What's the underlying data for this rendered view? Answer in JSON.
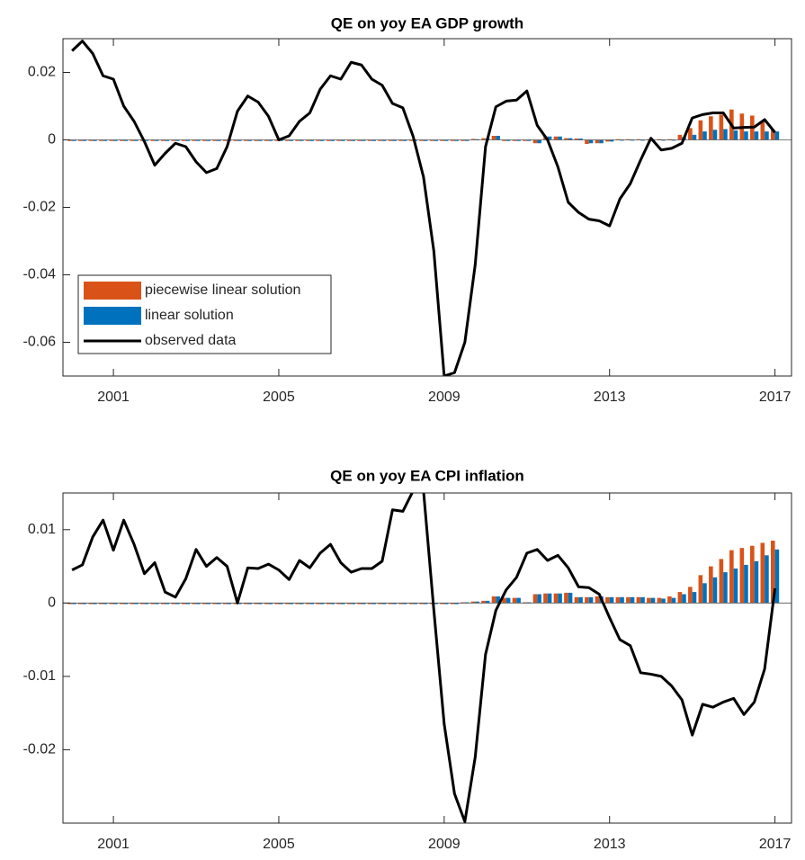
{
  "chart_data": [
    {
      "type": "combo",
      "title": "QE on yoy EA GDP growth",
      "x": [
        2000,
        2000.25,
        2000.5,
        2000.75,
        2001,
        2001.25,
        2001.5,
        2001.75,
        2002,
        2002.25,
        2002.5,
        2002.75,
        2003,
        2003.25,
        2003.5,
        2003.75,
        2004,
        2004.25,
        2004.5,
        2004.75,
        2005,
        2005.25,
        2005.5,
        2005.75,
        2006,
        2006.25,
        2006.5,
        2006.75,
        2007,
        2007.25,
        2007.5,
        2007.75,
        2008,
        2008.25,
        2008.5,
        2008.75,
        2009,
        2009.25,
        2009.5,
        2009.75,
        2010,
        2010.25,
        2010.5,
        2010.75,
        2011,
        2011.25,
        2011.5,
        2011.75,
        2012,
        2012.25,
        2012.5,
        2012.75,
        2013,
        2013.25,
        2013.5,
        2013.75,
        2014,
        2014.25,
        2014.5,
        2014.75,
        2015,
        2015.25,
        2015.5,
        2015.75,
        2016,
        2016.25,
        2016.5,
        2016.75,
        2017
      ],
      "series": [
        {
          "name": "piecewise linear solution",
          "type": "bar",
          "color": "#D95319",
          "values": [
            0,
            0,
            0,
            0,
            0,
            0,
            0,
            0,
            0,
            0,
            0,
            0,
            0,
            0,
            0,
            0,
            0,
            0,
            0,
            0,
            0,
            0,
            0,
            0,
            0,
            0,
            0,
            0,
            0,
            0,
            0,
            0,
            0,
            0,
            0,
            0,
            0,
            0,
            0,
            0.0003,
            0.0005,
            0.0012,
            0,
            0,
            0,
            -0.001,
            0.001,
            0.001,
            0.0005,
            0.0004,
            -0.0012,
            -0.001,
            -0.0005,
            0.0002,
            0.0002,
            0.0002,
            0.0002,
            0.0002,
            0.0002,
            0.0015,
            0.0035,
            0.0058,
            0.007,
            0.0075,
            0.009,
            0.0078,
            0.0072,
            0.0055,
            0.003
          ]
        },
        {
          "name": "linear solution",
          "type": "bar",
          "color": "#0072BD",
          "values": [
            0,
            0,
            0,
            0,
            0,
            0,
            0,
            0,
            0,
            0,
            0,
            0,
            0,
            0,
            0,
            0,
            0,
            0,
            0,
            0,
            0,
            0,
            0,
            0,
            0,
            0,
            0,
            0,
            0,
            0,
            0,
            0,
            0,
            0,
            0,
            0,
            0,
            0,
            0,
            0.0002,
            0.0004,
            0.0012,
            0,
            0,
            0,
            -0.001,
            0.001,
            0.001,
            0.0005,
            0.0004,
            -0.001,
            -0.001,
            -0.0005,
            0.0001,
            0.0001,
            0.0001,
            0.0001,
            0.0001,
            0.0001,
            0.0008,
            0.0015,
            0.0025,
            0.003,
            0.0032,
            0.0028,
            0.0025,
            0.0025,
            0.0025,
            0.0025
          ]
        },
        {
          "name": "observed data",
          "type": "line",
          "color": "#000000",
          "values": [
            0.0264,
            0.0293,
            0.0256,
            0.019,
            0.018,
            0.01,
            0.0055,
            -0.0005,
            -0.0075,
            -0.004,
            -0.001,
            -0.002,
            -0.0065,
            -0.0097,
            -0.0085,
            -0.002,
            0.0085,
            0.013,
            0.0112,
            0.007,
            0,
            0.0012,
            0.0055,
            0.008,
            0.015,
            0.019,
            0.018,
            0.023,
            0.0222,
            0.018,
            0.0162,
            0.0108,
            0.0095,
            0.001,
            -0.011,
            -0.033,
            -0.07,
            -0.069,
            -0.06,
            -0.037,
            -0.002,
            0.0098,
            0.0115,
            0.0118,
            0.0145,
            0.0043,
            0,
            -0.008,
            -0.0185,
            -0.0215,
            -0.0235,
            -0.024,
            -0.0255,
            -0.0175,
            -0.013,
            -0.006,
            0.0005,
            -0.003,
            -0.0025,
            -0.001,
            0.0065,
            0.0075,
            0.008,
            0.008,
            0.0035,
            0.0037,
            0.0038,
            0.006,
            0.0022
          ]
        }
      ],
      "xlim": [
        1999.78,
        2017.4
      ],
      "xticks": [
        2001,
        2005,
        2009,
        2013,
        2017
      ],
      "ylim": [
        -0.07,
        0.03
      ],
      "yticks": [
        -0.06,
        -0.04,
        -0.02,
        0,
        0.02
      ],
      "legend": "lower left"
    },
    {
      "type": "combo",
      "title": "QE on yoy EA CPI inflation",
      "x": [
        2000,
        2000.25,
        2000.5,
        2000.75,
        2001,
        2001.25,
        2001.5,
        2001.75,
        2002,
        2002.25,
        2002.5,
        2002.75,
        2003,
        2003.25,
        2003.5,
        2003.75,
        2004,
        2004.25,
        2004.5,
        2004.75,
        2005,
        2005.25,
        2005.5,
        2005.75,
        2006,
        2006.25,
        2006.5,
        2006.75,
        2007,
        2007.25,
        2007.5,
        2007.75,
        2008,
        2008.25,
        2008.5,
        2008.75,
        2009,
        2009.25,
        2009.5,
        2009.75,
        2010,
        2010.25,
        2010.5,
        2010.75,
        2011,
        2011.25,
        2011.5,
        2011.75,
        2012,
        2012.25,
        2012.5,
        2012.75,
        2013,
        2013.25,
        2013.5,
        2013.75,
        2014,
        2014.25,
        2014.5,
        2014.75,
        2015,
        2015.25,
        2015.5,
        2015.75,
        2016,
        2016.25,
        2016.5,
        2016.75,
        2017
      ],
      "series": [
        {
          "type": "bar",
          "color": "#D95319",
          "values": [
            0,
            0,
            0,
            0,
            0,
            0,
            0,
            0,
            0,
            0,
            0,
            0,
            0,
            0,
            0,
            0,
            0,
            0,
            0,
            0,
            0,
            0,
            0,
            0,
            0,
            0,
            0,
            0,
            0,
            0,
            0,
            0,
            0,
            0,
            0,
            0,
            0,
            0,
            0.0001,
            0.0002,
            0.0003,
            0.0009,
            0.0007,
            0.0007,
            0.0001,
            0.0012,
            0.0013,
            0.0013,
            0.0014,
            0.0008,
            0.0008,
            0.0009,
            0.0008,
            0.0008,
            0.0008,
            0.0008,
            0.0007,
            0.0007,
            0.0009,
            0.0015,
            0.0022,
            0.0038,
            0.005,
            0.006,
            0.0072,
            0.0075,
            0.0078,
            0.0082,
            0.0085
          ]
        },
        {
          "type": "bar",
          "color": "#0072BD",
          "values": [
            0,
            0,
            0,
            0,
            0,
            0,
            0,
            0,
            0,
            0,
            0,
            0,
            0,
            0,
            0,
            0,
            0,
            0,
            0,
            0,
            0,
            0,
            0,
            0,
            0,
            0,
            0,
            0,
            0,
            0,
            0,
            0,
            0,
            0,
            0,
            0,
            0,
            0,
            0.0001,
            0.0002,
            0.0003,
            0.0009,
            0.0007,
            0.0007,
            0.0001,
            0.0012,
            0.0013,
            0.0013,
            0.0014,
            0.0008,
            0.0008,
            0.0009,
            0.0008,
            0.0008,
            0.0008,
            0.0008,
            0.0007,
            0.0006,
            0.0007,
            0.0012,
            0.0015,
            0.0027,
            0.0035,
            0.0042,
            0.0047,
            0.0052,
            0.0057,
            0.0065,
            0.0073
          ]
        },
        {
          "type": "line",
          "color": "#000000",
          "values": [
            0.0045,
            0.0052,
            0.009,
            0.0113,
            0.0072,
            0.0113,
            0.008,
            0.004,
            0.0055,
            0.0015,
            0.0008,
            0.0033,
            0.0073,
            0.005,
            0.0062,
            0.005,
            0,
            0.0048,
            0.0047,
            0.0053,
            0.0045,
            0.0032,
            0.0058,
            0.0048,
            0.0068,
            0.008,
            0.0055,
            0.0042,
            0.0047,
            0.0047,
            0.0057,
            0.0127,
            0.0125,
            0.0153,
            0.0153,
            -0.001,
            -0.0165,
            -0.026,
            -0.0298,
            -0.021,
            -0.007,
            -0.001,
            0.0018,
            0.0035,
            0.0068,
            0.0073,
            0.0058,
            0.0065,
            0.0048,
            0.0022,
            0.0021,
            0.0012,
            -0.002,
            -0.005,
            -0.0058,
            -0.0095,
            -0.0097,
            -0.01,
            -0.0113,
            -0.0132,
            -0.018,
            -0.0138,
            -0.0142,
            -0.0135,
            -0.013,
            -0.0152,
            -0.0135,
            -0.009,
            0.002
          ]
        }
      ],
      "xlim": [
        1999.78,
        2017.4
      ],
      "xticks": [
        2001,
        2005,
        2009,
        2013,
        2017
      ],
      "ylim": [
        -0.03,
        0.015
      ],
      "yticks": [
        -0.02,
        -0.01,
        0,
        0.01
      ]
    }
  ]
}
